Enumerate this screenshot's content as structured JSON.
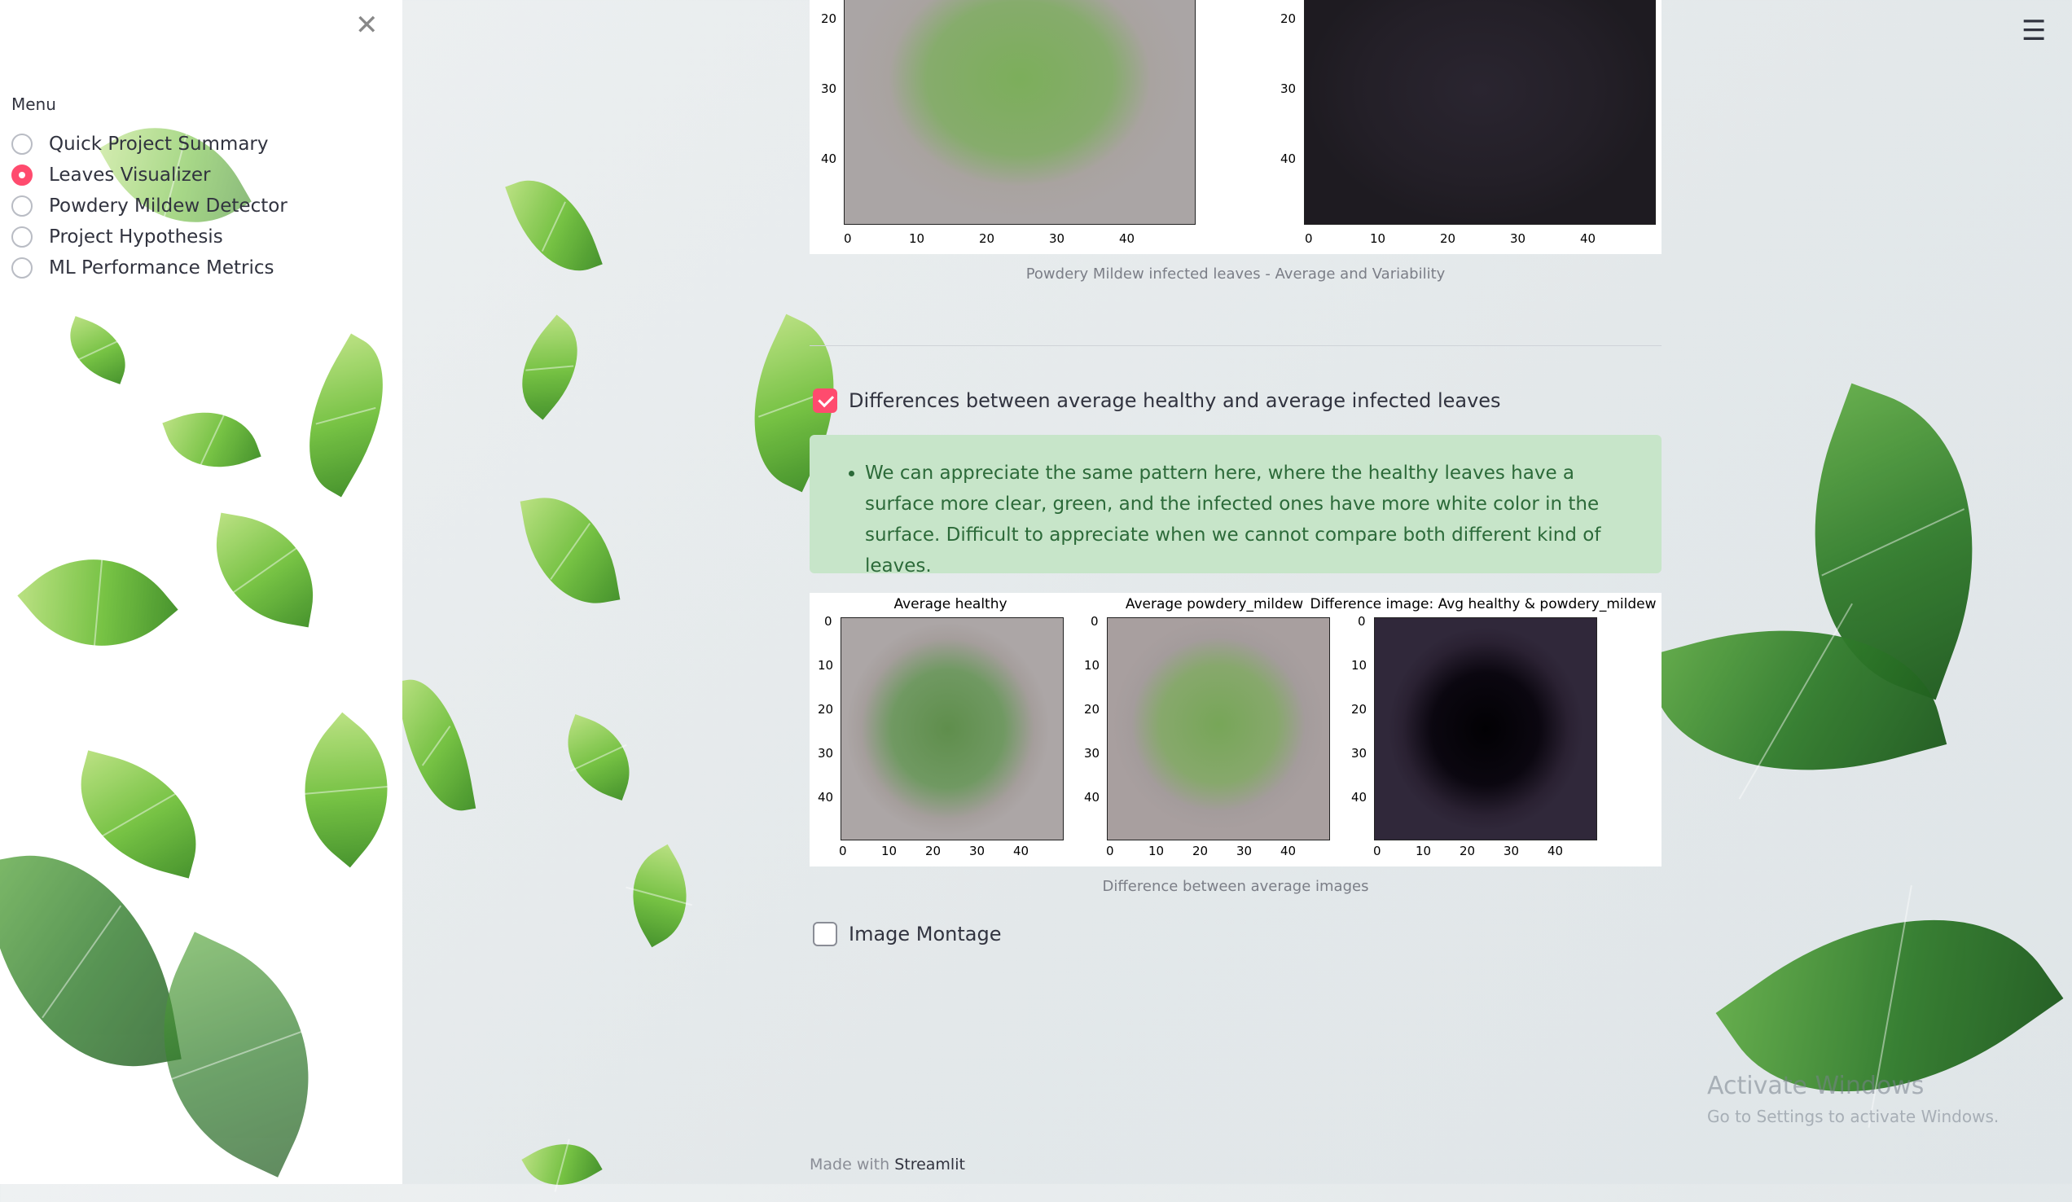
{
  "sidebar": {
    "menu_title": "Menu",
    "items": [
      {
        "label": "Quick Project Summary",
        "selected": false
      },
      {
        "label": "Leaves Visualizer",
        "selected": true
      },
      {
        "label": "Powdery Mildew Detector",
        "selected": false
      },
      {
        "label": "Project Hypothesis",
        "selected": false
      },
      {
        "label": "ML Performance Metrics",
        "selected": false
      }
    ]
  },
  "top_figure": {
    "yticks": [
      "20",
      "30",
      "40"
    ],
    "xticks": [
      "0",
      "10",
      "20",
      "30",
      "40"
    ],
    "caption": "Powdery Mildew infected leaves - Average and Variability"
  },
  "differences": {
    "checkbox_label": "Differences between average healthy and average infected leaves",
    "checked": true,
    "info_text": "We can appreciate the same pattern here, where the healthy leaves have a surface more clear, green, and the infected ones have more white color in the surface. Difficult to appreciate when we cannot compare both different kind of leaves.",
    "plots": [
      {
        "title": "Average healthy"
      },
      {
        "title": "Average powdery_mildew"
      },
      {
        "title": "Difference image: Avg healthy & powdery_mildew"
      }
    ],
    "yticks": [
      "0",
      "10",
      "20",
      "30",
      "40"
    ],
    "xticks": [
      "0",
      "10",
      "20",
      "30",
      "40"
    ],
    "caption": "Difference between average images"
  },
  "montage": {
    "checkbox_label": "Image Montage",
    "checked": false
  },
  "footer": {
    "prefix": "Made with",
    "brand": "Streamlit"
  },
  "watermark": {
    "line1": "Activate Windows",
    "line2": "Go to Settings to activate Windows."
  },
  "colors": {
    "accent": "#ff4b6e",
    "info_bg": "#c7e5c9",
    "info_text": "#2c6a39"
  }
}
